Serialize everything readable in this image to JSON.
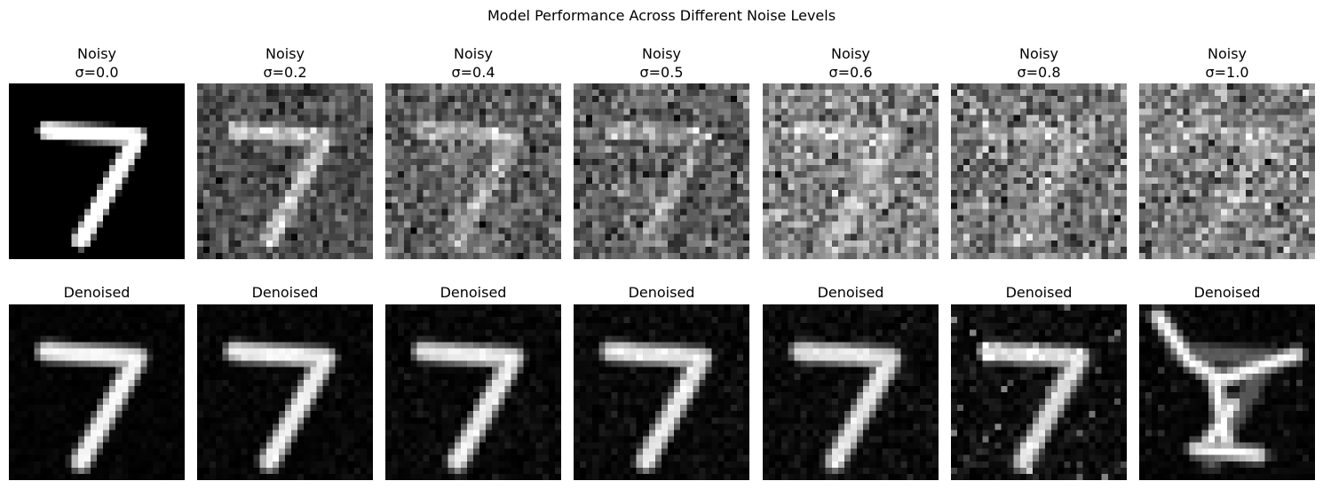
{
  "figure_title": "Model Performance Across Different Noise Levels",
  "chart_data": {
    "type": "image-grid",
    "title": "Model Performance Across Different Noise Levels",
    "rows": [
      {
        "panels": [
          {
            "title_line1": "Noisy",
            "title_line2": "σ=0.0",
            "noise": 0.0
          },
          {
            "title_line1": "Noisy",
            "title_line2": "σ=0.2",
            "noise": 0.2
          },
          {
            "title_line1": "Noisy",
            "title_line2": "σ=0.4",
            "noise": 0.4
          },
          {
            "title_line1": "Noisy",
            "title_line2": "σ=0.5",
            "noise": 0.5
          },
          {
            "title_line1": "Noisy",
            "title_line2": "σ=0.6",
            "noise": 0.6
          },
          {
            "title_line1": "Noisy",
            "title_line2": "σ=0.8",
            "noise": 0.8
          },
          {
            "title_line1": "Noisy",
            "title_line2": "σ=1.0",
            "noise": 1.0
          }
        ]
      },
      {
        "panels": [
          {
            "title_line1": "Denoised",
            "noise": 0.0
          },
          {
            "title_line1": "Denoised",
            "noise": 0.2
          },
          {
            "title_line1": "Denoised",
            "noise": 0.4
          },
          {
            "title_line1": "Denoised",
            "noise": 0.5
          },
          {
            "title_line1": "Denoised",
            "noise": 0.6
          },
          {
            "title_line1": "Denoised",
            "noise": 0.8
          },
          {
            "title_line1": "Denoised",
            "noise": 1.0
          }
        ]
      }
    ],
    "colormap": "gray",
    "axes": "off"
  }
}
